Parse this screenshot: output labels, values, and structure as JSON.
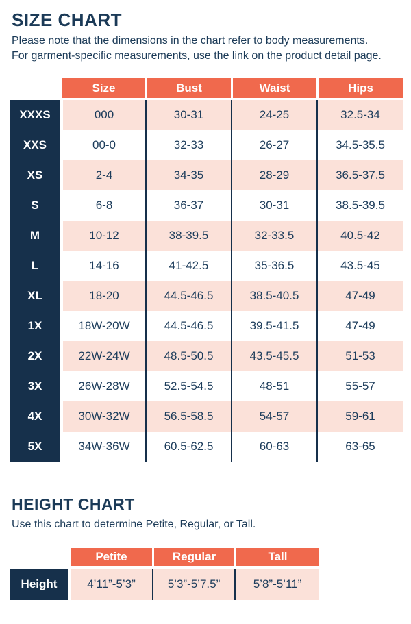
{
  "colors": {
    "coral_header": "#f0694d",
    "navy_cell": "#16304b",
    "navy_text": "#1c3c5b",
    "pink_row": "#fbe1d9",
    "white": "#ffffff"
  },
  "size_chart": {
    "title": "SIZE CHART",
    "subtitle_line1": "Please note that the dimensions in the chart refer to body measurements.",
    "subtitle_line2": "For garment-specific measurements, use the link on the product detail page.",
    "columns": [
      "Size",
      "Bust",
      "Waist",
      "Hips"
    ],
    "rows": [
      {
        "label": "XXXS",
        "size": "000",
        "bust": "30-31",
        "waist": "24-25",
        "hips": "32.5-34"
      },
      {
        "label": "XXS",
        "size": "00-0",
        "bust": "32-33",
        "waist": "26-27",
        "hips": "34.5-35.5"
      },
      {
        "label": "XS",
        "size": "2-4",
        "bust": "34-35",
        "waist": "28-29",
        "hips": "36.5-37.5"
      },
      {
        "label": "S",
        "size": "6-8",
        "bust": "36-37",
        "waist": "30-31",
        "hips": "38.5-39.5"
      },
      {
        "label": "M",
        "size": "10-12",
        "bust": "38-39.5",
        "waist": "32-33.5",
        "hips": "40.5-42"
      },
      {
        "label": "L",
        "size": "14-16",
        "bust": "41-42.5",
        "waist": "35-36.5",
        "hips": "43.5-45"
      },
      {
        "label": "XL",
        "size": "18-20",
        "bust": "44.5-46.5",
        "waist": "38.5-40.5",
        "hips": "47-49"
      },
      {
        "label": "1X",
        "size": "18W-20W",
        "bust": "44.5-46.5",
        "waist": "39.5-41.5",
        "hips": "47-49"
      },
      {
        "label": "2X",
        "size": "22W-24W",
        "bust": "48.5-50.5",
        "waist": "43.5-45.5",
        "hips": "51-53"
      },
      {
        "label": "3X",
        "size": "26W-28W",
        "bust": "52.5-54.5",
        "waist": "48-51",
        "hips": "55-57"
      },
      {
        "label": "4X",
        "size": "30W-32W",
        "bust": "56.5-58.5",
        "waist": "54-57",
        "hips": "59-61"
      },
      {
        "label": "5X",
        "size": "34W-36W",
        "bust": "60.5-62.5",
        "waist": "60-63",
        "hips": "63-65"
      }
    ]
  },
  "height_chart": {
    "title": "HEIGHT CHART",
    "subtitle": "Use this chart to determine Petite, Regular, or Tall.",
    "columns": [
      "Petite",
      "Regular",
      "Tall"
    ],
    "row_label": "Height",
    "values": [
      "4’11”-5’3”",
      "5’3”-5’7.5”",
      "5’8”-5’11”"
    ]
  }
}
